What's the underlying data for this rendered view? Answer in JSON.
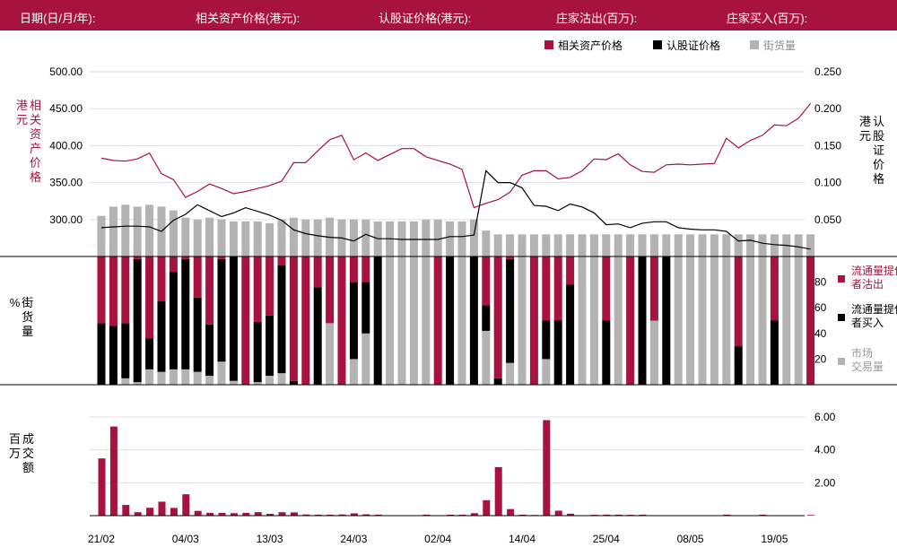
{
  "header": {
    "date_label": "日期(日/月/年):",
    "underlying_label": "相关资产价格(港元):",
    "warrant_label": "认股证价格(港元):",
    "sold_label": "庄家沽出(百万):",
    "bought_label": "庄家买入(百万):"
  },
  "colors": {
    "accent": "#a8123e",
    "black": "#000000",
    "gray": "#b3b3b3",
    "grid": "#e0e0e0"
  },
  "chart_data": [
    {
      "type": "line",
      "legend": [
        "相关资产价格",
        "认股证价格",
        "街货量"
      ],
      "legend_placement": "top-right",
      "left_axis_label": "相关资产价格 (港元)",
      "right_axis_label": "认股证价格 (港元)",
      "left_ticks": [
        "500.00",
        "450.00",
        "400.00",
        "350.00",
        "300.00"
      ],
      "right_ticks": [
        "0.250",
        "0.200",
        "0.150",
        "0.100",
        "0.050"
      ],
      "left_range": [
        250,
        500
      ],
      "right_range": [
        0,
        0.25
      ],
      "underlying_price": [
        383,
        380,
        379,
        382,
        390,
        362,
        354,
        330,
        338,
        348,
        342,
        335,
        338,
        342,
        346,
        352,
        377,
        377,
        393,
        408,
        414,
        381,
        390,
        380,
        388,
        396,
        396,
        385,
        380,
        375,
        368,
        316,
        322,
        327,
        337,
        360,
        366,
        366,
        355,
        357,
        366,
        382,
        381,
        389,
        374,
        365,
        364,
        374,
        375,
        374,
        375,
        376,
        410,
        397,
        407,
        414,
        428,
        427,
        437,
        457
      ],
      "warrant_price": [
        0.039,
        0.04,
        0.041,
        0.041,
        0.04,
        0.034,
        0.049,
        0.057,
        0.07,
        0.062,
        0.054,
        0.059,
        0.066,
        0.061,
        0.056,
        0.049,
        0.036,
        0.031,
        0.028,
        0.026,
        0.025,
        0.021,
        0.03,
        0.024,
        0.024,
        0.023,
        0.023,
        0.023,
        0.023,
        0.027,
        0.027,
        0.029,
        0.116,
        0.1,
        0.1,
        0.093,
        0.069,
        0.068,
        0.062,
        0.071,
        0.067,
        0.059,
        0.043,
        0.044,
        0.039,
        0.045,
        0.047,
        0.047,
        0.039,
        0.037,
        0.036,
        0.036,
        0.034,
        0.021,
        0.022,
        0.018,
        0.016,
        0.015,
        0.013,
        0.01
      ],
      "outstanding_pct": [
        22,
        27,
        28,
        27,
        28,
        27,
        25,
        21,
        20,
        21,
        20,
        19,
        19,
        19,
        18,
        20,
        21,
        20,
        20,
        21,
        20,
        20,
        20,
        19,
        19,
        19,
        19,
        20,
        20,
        19,
        19,
        20,
        14,
        12,
        12,
        12,
        12,
        12,
        12,
        12,
        12,
        12,
        12,
        12,
        12,
        12,
        12,
        12,
        12,
        12,
        12,
        12,
        12,
        12,
        12,
        12,
        12,
        12,
        12,
        12
      ]
    },
    {
      "type": "bar",
      "stacked": true,
      "y_axis_label": "街货量 (%)",
      "y_ticks": [
        "80",
        "60",
        "40",
        "20"
      ],
      "y_range": [
        0,
        100
      ],
      "legend": [
        "流通量提供者沽出",
        "流通量提供者买入",
        "市场交易量"
      ],
      "legend_placement": "right",
      "series": [
        {
          "name": "流通量提供者沽出",
          "values": [
            52,
            54,
            52,
            2,
            64,
            35,
            12,
            2,
            32,
            53,
            2,
            0,
            100,
            51,
            46,
            7,
            97,
            100,
            24,
            52,
            100,
            20,
            20,
            0,
            0,
            0,
            0,
            0,
            100,
            0,
            0,
            0,
            38,
            95,
            2,
            0,
            100,
            50,
            50,
            22,
            0,
            0,
            50,
            0,
            100,
            0,
            50,
            0,
            0,
            0,
            0,
            0,
            0,
            70,
            0,
            0,
            50,
            0,
            0,
            100
          ]
        },
        {
          "name": "流通量提供者买入",
          "values": [
            48,
            46,
            43,
            96,
            24,
            55,
            76,
            86,
            58,
            40,
            80,
            97,
            0,
            47,
            47,
            84,
            3,
            0,
            76,
            0,
            0,
            60,
            40,
            100,
            0,
            0,
            0,
            0,
            0,
            100,
            0,
            100,
            20,
            5,
            81,
            0,
            0,
            30,
            50,
            78,
            0,
            0,
            50,
            0,
            0,
            100,
            0,
            100,
            0,
            0,
            0,
            0,
            0,
            30,
            0,
            0,
            50,
            0,
            0,
            0
          ]
        },
        {
          "name": "市场交易量",
          "values": [
            0,
            0,
            5,
            2,
            12,
            10,
            12,
            12,
            10,
            7,
            18,
            3,
            0,
            2,
            7,
            9,
            0,
            0,
            0,
            48,
            0,
            20,
            40,
            0,
            100,
            100,
            100,
            100,
            0,
            0,
            100,
            0,
            42,
            0,
            17,
            100,
            0,
            20,
            0,
            0,
            100,
            100,
            0,
            100,
            0,
            0,
            50,
            0,
            100,
            100,
            100,
            100,
            100,
            0,
            100,
            100,
            0,
            100,
            100,
            0
          ]
        }
      ]
    },
    {
      "type": "bar",
      "y_axis_label": "成交额 (百万)",
      "y_ticks": [
        "6.00",
        "4.00",
        "2.00"
      ],
      "y_range": [
        0,
        6
      ],
      "x_tick_labels": [
        "21/02",
        "04/03",
        "13/03",
        "24/03",
        "02/04",
        "14/04",
        "25/04",
        "08/05",
        "19/05"
      ],
      "x_tick_index": [
        0,
        7,
        14,
        21,
        28,
        35,
        42,
        49,
        56
      ],
      "values": [
        3.48,
        5.42,
        0.65,
        0.21,
        0.48,
        0.85,
        0.47,
        1.3,
        0.29,
        0.17,
        0.17,
        0.15,
        0.17,
        0.21,
        0.11,
        0.21,
        0.2,
        0.07,
        0.06,
        0.06,
        0.07,
        0.14,
        0.08,
        0.06,
        0,
        0,
        0,
        0.06,
        0,
        0.06,
        0.06,
        0.15,
        0.94,
        2.95,
        0.4,
        0.06,
        0.04,
        5.81,
        0.3,
        0.12,
        0,
        0.05,
        0.06,
        0.06,
        0.05,
        0.06,
        0,
        0,
        0,
        0,
        0,
        0,
        0.06,
        0,
        0,
        0.06,
        0,
        0,
        0,
        0.04
      ]
    }
  ]
}
